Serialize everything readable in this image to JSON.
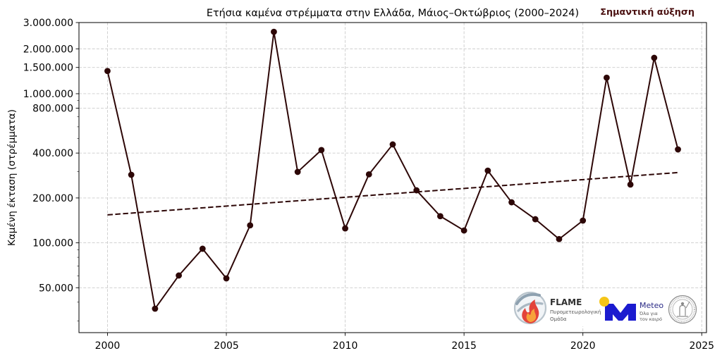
{
  "chart_data": {
    "type": "line",
    "title": "Ετήσια καμένα στρέμματα στην Ελλάδα, Μάιος–Οκτώβριος (2000–2024)",
    "ylabel": "Καμένη έκταση (στρέμματα)",
    "yscale": "log",
    "grid": true,
    "legend": false,
    "xlim": [
      1998.8,
      2025.2
    ],
    "ylim": [
      25000,
      3000000
    ],
    "x": [
      2000,
      2001,
      2002,
      2003,
      2004,
      2005,
      2006,
      2007,
      2008,
      2009,
      2010,
      2011,
      2012,
      2013,
      2014,
      2015,
      2016,
      2017,
      2018,
      2019,
      2020,
      2021,
      2022,
      2023,
      2024
    ],
    "series": [
      {
        "values": [
          1420000,
          286000,
          36200,
          60400,
          91300,
          57800,
          131000,
          2600000,
          299000,
          419000,
          125000,
          288000,
          457000,
          225000,
          151000,
          121000,
          305000,
          187000,
          144000,
          106000,
          141000,
          1280000,
          246000,
          1740000,
          423000
        ],
        "color": "#2d0707",
        "markers": true
      }
    ],
    "trend": {
      "x": [
        2000,
        2024
      ],
      "values": [
        154000,
        296000
      ],
      "dashed": true,
      "color": "#2d0707"
    },
    "xticks": {
      "values": [
        2000,
        2005,
        2010,
        2015,
        2020,
        2025
      ],
      "labels": [
        "2000",
        "2005",
        "2010",
        "2015",
        "2020",
        "2025"
      ]
    },
    "yticks": {
      "values": [
        50000,
        100000,
        200000,
        400000,
        800000,
        1000000,
        1500000,
        2000000,
        3000000
      ],
      "labels": [
        "50.000",
        "100.000",
        "200.000",
        "400.000",
        "800.000",
        "1.000.000",
        "1.500.000",
        "2.000.000",
        "3.000.000"
      ]
    },
    "yminor_ticks": [
      30000,
      40000,
      60000,
      70000,
      80000,
      90000,
      300000,
      500000,
      600000,
      700000,
      900000
    ],
    "annotations": [
      {
        "text": "Σημαντική αύξηση",
        "color": "#4a1010"
      }
    ]
  },
  "logos": {
    "flame": {
      "icon": "flame-logo-icon",
      "name": "FLAME",
      "line1": "Πυρομετεωρολογική",
      "line2": "Ομάδα"
    },
    "meteo": {
      "icon": "meteo-logo-icon",
      "name": "Meteo",
      "line1": "Όλα για",
      "line2": "τον καιρό",
      "color": "#1b1bcf",
      "dot_color": "#f5c518"
    },
    "seal": {
      "icon": "observatory-seal-icon"
    }
  }
}
